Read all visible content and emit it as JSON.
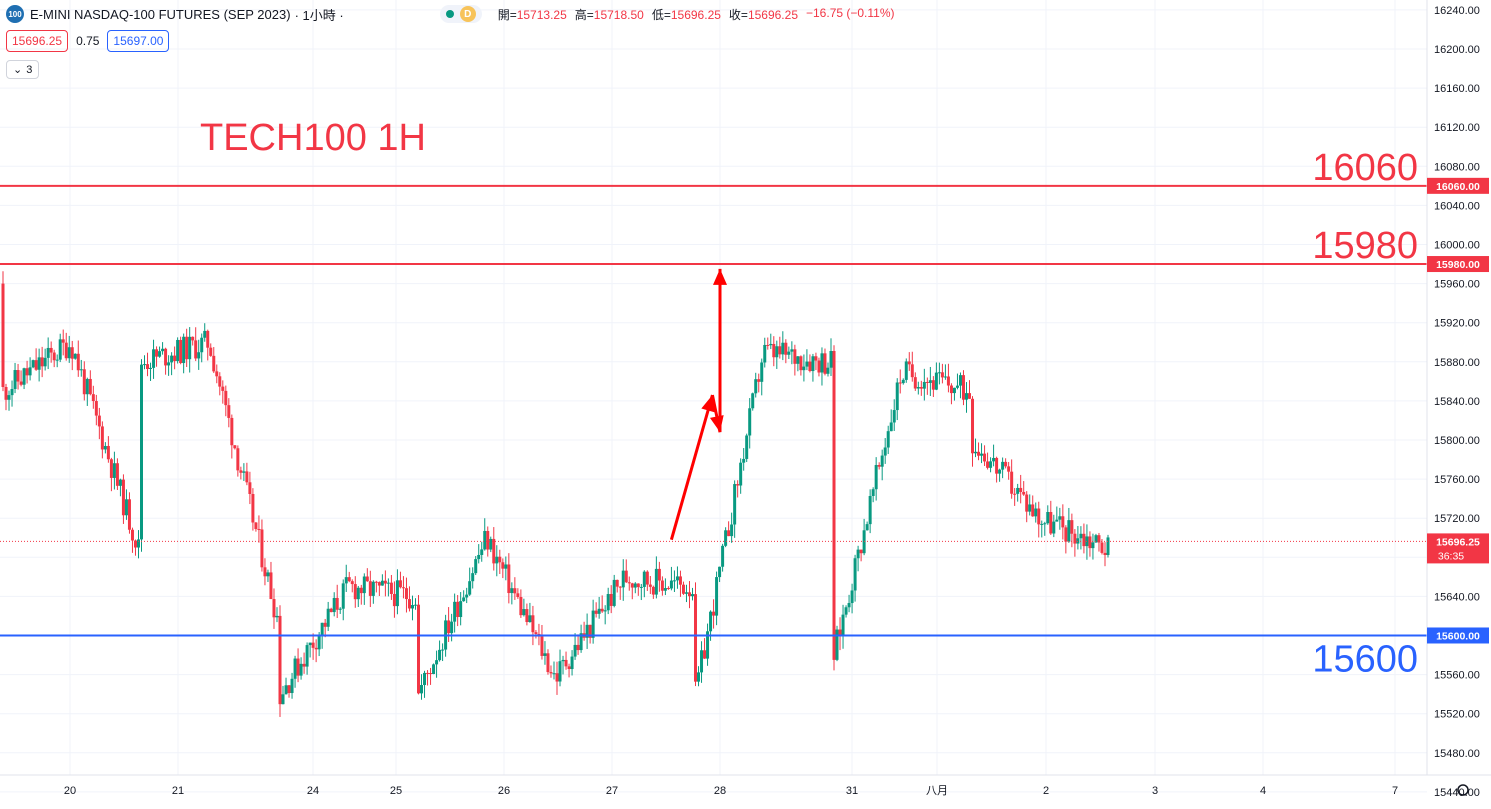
{
  "header": {
    "symbol_logo": "100",
    "title": "E-MINI NASDAQ-100 FUTURES (SEP 2023)",
    "interval": "· 1小時 ·",
    "delay_badge": "D",
    "ohlc": {
      "open_label": "開=",
      "open": "15713.25",
      "high_label": "高=",
      "high": "15718.50",
      "low_label": "低=",
      "low": "15696.25",
      "close_label": "收=",
      "close": "15696.25",
      "change": "−16.75 (−0.11%)"
    }
  },
  "quote": {
    "sell": "15696.25",
    "spread": "0.75",
    "buy": "15697.00"
  },
  "indicators_toggle": {
    "count": "3"
  },
  "colors": {
    "up": "#089981",
    "down": "#f23645",
    "resistance": "#f23645",
    "support": "#2962ff",
    "arrow": "#ff0000"
  },
  "chart_data": {
    "type": "candlestick",
    "title": "TECH100 1H",
    "y_axis": {
      "ticks": [
        "16240.00",
        "16200.00",
        "16160.00",
        "16120.00",
        "16080.00",
        "16040.00",
        "16000.00",
        "15960.00",
        "15920.00",
        "15880.00",
        "15840.00",
        "15800.00",
        "15760.00",
        "15720.00",
        "15680.00",
        "15640.00",
        "15600.00",
        "15560.00",
        "15520.00",
        "15480.00",
        "15440.00"
      ],
      "range": [
        15430,
        16245
      ]
    },
    "x_axis": {
      "ticks": [
        "20",
        "21",
        "24",
        "25",
        "26",
        "27",
        "28",
        "31",
        "八月",
        "2",
        "3",
        "4",
        "7"
      ]
    },
    "levels": [
      {
        "value": 16060,
        "label": "16060",
        "axis_label": "16060.00",
        "color": "#f23645"
      },
      {
        "value": 15980,
        "label": "15980",
        "axis_label": "15980.00",
        "color": "#f23645"
      },
      {
        "value": 15600,
        "label": "15600",
        "axis_label": "15600.00",
        "color": "#2962ff"
      }
    ],
    "last_price": {
      "value": 15696.25,
      "label": "15696.25",
      "countdown": "36:35"
    },
    "waypoints": [
      [
        15850,
        15690,
        15900
      ],
      [
        15880,
        15620,
        15900
      ],
      [
        15540,
        15640,
        15650
      ],
      [
        15540,
        15560,
        15700
      ],
      [
        15560,
        15650,
        15660
      ],
      [
        15540,
        15880,
        15890
      ],
      [
        15580,
        15850,
        15870
      ],
      [
        15800,
        15690,
        15720
      ]
    ],
    "projection": [
      {
        "session": 7.55,
        "value": 15698
      },
      {
        "session": 7.93,
        "value": 15846
      },
      {
        "session": 8.18,
        "value": 15808
      },
      {
        "session": 8.58,
        "value": 15975
      }
    ]
  }
}
